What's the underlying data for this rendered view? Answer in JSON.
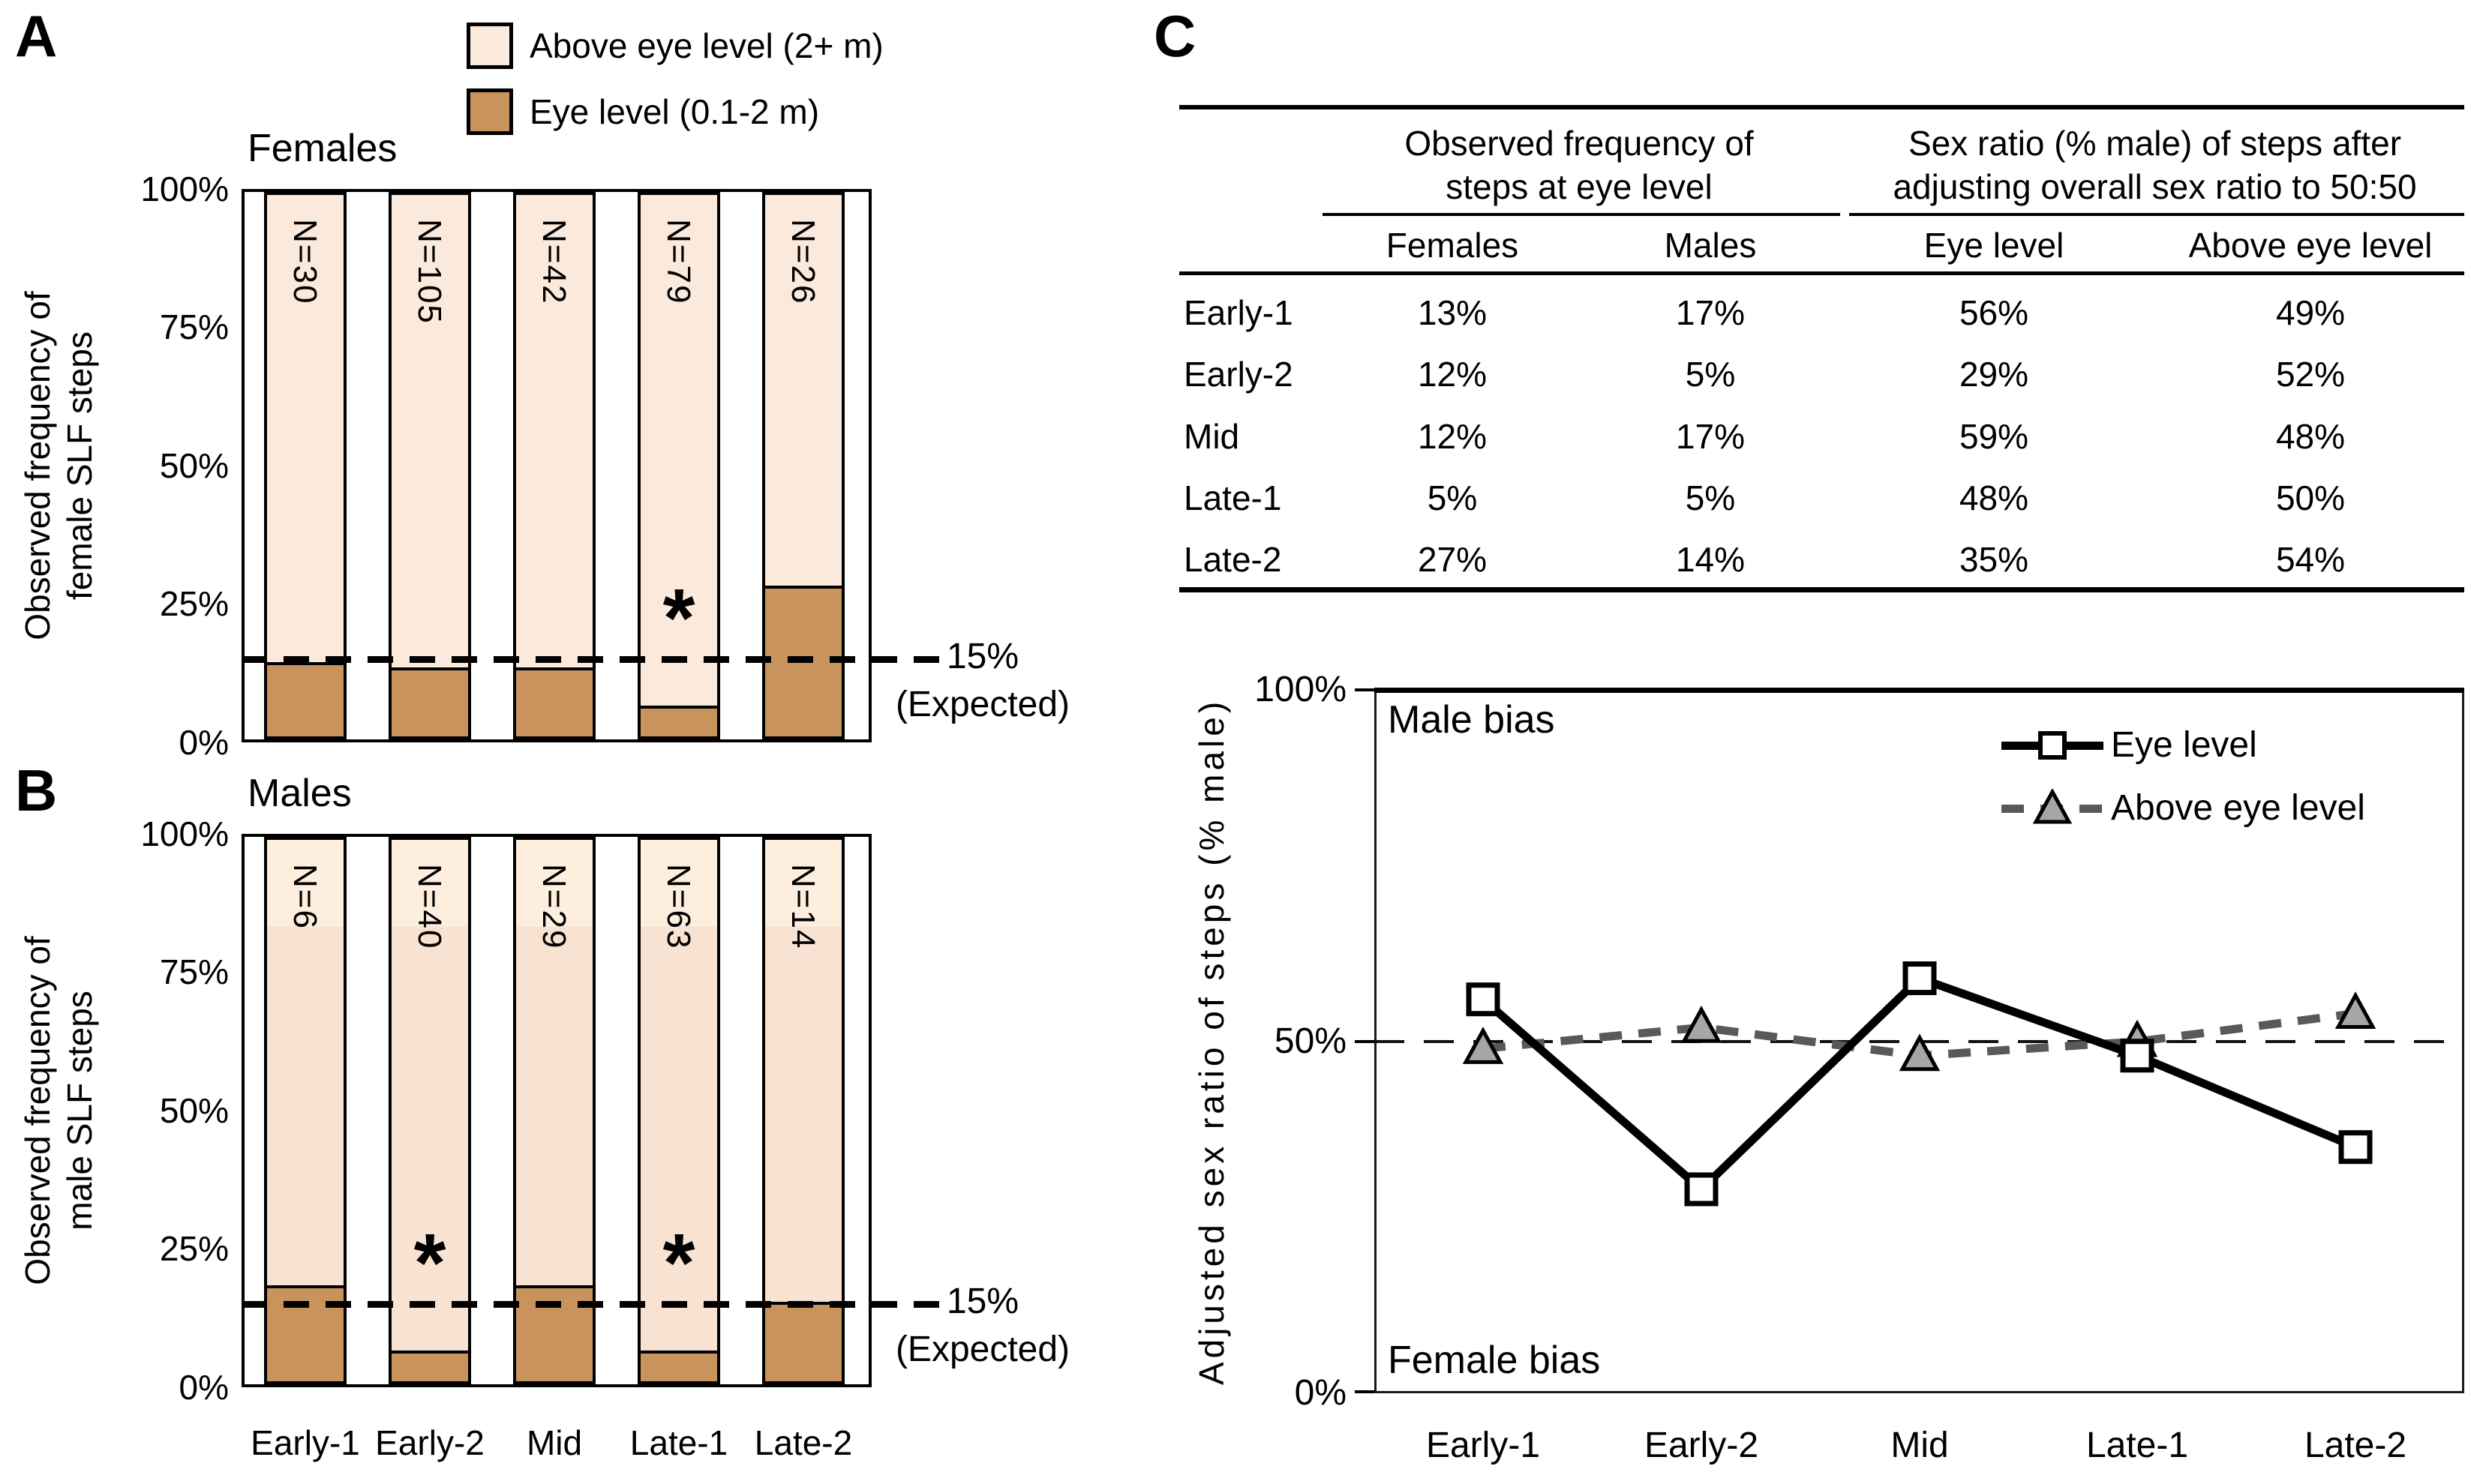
{
  "panels": {
    "a_label": "A",
    "b_label": "B",
    "c_label": "C"
  },
  "legend": {
    "items": [
      {
        "name": "above-eye-level",
        "label": "Above eye level (2+ m)",
        "color": "#fbe9dc"
      },
      {
        "name": "eye-level",
        "label": "Eye level (0.1-2 m)",
        "color": "#c8945c"
      }
    ]
  },
  "categories": [
    "Early-1",
    "Early-2",
    "Mid",
    "Late-1",
    "Late-2"
  ],
  "chart_data": [
    {
      "id": "females_stacked_bar",
      "type": "bar",
      "stacked": true,
      "title": "Females",
      "ylabel_lines": [
        "Observed frequency of",
        "female SLF steps"
      ],
      "categories": [
        "Early-1",
        "Early-2",
        "Mid",
        "Late-1",
        "Late-2"
      ],
      "series": [
        {
          "name": "Eye level (0.1-2 m)",
          "values": [
            13,
            12,
            12,
            5,
            27
          ],
          "color": "#c8945c"
        },
        {
          "name": "Above eye level (2+ m)",
          "values": [
            87,
            88,
            88,
            95,
            73
          ],
          "color": "#fbe9dc"
        }
      ],
      "bar_labels": [
        "N=30",
        "N=105",
        "N=42",
        "N=79",
        "N=26"
      ],
      "significance": [
        "",
        "",
        "",
        "*",
        ""
      ],
      "yticks": [
        "100%",
        "75%",
        "50%",
        "25%",
        "0%"
      ],
      "ylim": [
        0,
        100
      ],
      "reference_line": {
        "value": 15,
        "label": "15%",
        "sublabel": "(Expected)"
      }
    },
    {
      "id": "males_stacked_bar",
      "type": "bar",
      "stacked": true,
      "title": "Males",
      "ylabel_lines": [
        "Observed frequency of",
        "male SLF steps"
      ],
      "categories": [
        "Early-1",
        "Early-2",
        "Mid",
        "Late-1",
        "Late-2"
      ],
      "series": [
        {
          "name": "Eye level (0.1-2 m)",
          "values": [
            17,
            5,
            17,
            5,
            14
          ],
          "color": "#c8945c"
        },
        {
          "name": "Above eye level (2+ m)",
          "values": [
            83,
            95,
            83,
            95,
            86
          ],
          "color": "#fbe9dc"
        }
      ],
      "bar_labels": [
        "N=6",
        "N=40",
        "N=29",
        "N=63",
        "N=14"
      ],
      "significance": [
        "",
        "*",
        "",
        "*",
        ""
      ],
      "yticks": [
        "100%",
        "75%",
        "50%",
        "25%",
        "0%"
      ],
      "ylim": [
        0,
        100
      ],
      "reference_line": {
        "value": 15,
        "label": "15%",
        "sublabel": "(Expected)"
      }
    },
    {
      "id": "adjusted_sex_ratio_line",
      "type": "line",
      "ylabel": "Adjusted sex ratio of steps (% male)",
      "categories": [
        "Early-1",
        "Early-2",
        "Mid",
        "Late-1",
        "Late-2"
      ],
      "series": [
        {
          "name": "Eye level",
          "values": [
            56,
            29,
            59,
            48,
            35
          ],
          "line": "solid",
          "marker": "square",
          "color": "#000000",
          "marker_fill": "#ffffff"
        },
        {
          "name": "Above eye level",
          "values": [
            49,
            52,
            48,
            50,
            54
          ],
          "line": "dashed",
          "marker": "triangle",
          "color": "#595959",
          "marker_fill": "#a6a6a6"
        }
      ],
      "yticks": [
        "100%",
        "50%",
        "0%"
      ],
      "ylim": [
        0,
        100
      ],
      "reference_line": {
        "value": 50
      },
      "annotations": {
        "top_left": "Male bias",
        "bottom_left": "Female bias"
      },
      "legend_position": "top-right"
    }
  ],
  "table": {
    "group_headers_lines": [
      [
        "Observed frequency of",
        "steps at eye level"
      ],
      [
        "Sex ratio (% male) of steps after",
        "adjusting overall sex ratio to 50:50"
      ]
    ],
    "col_headers": [
      "Females",
      "Males",
      "Eye level",
      "Above eye level"
    ],
    "rows": [
      {
        "label": "Early-1",
        "values": [
          "13%",
          "17%",
          "56%",
          "49%"
        ]
      },
      {
        "label": "Early-2",
        "values": [
          "12%",
          "5%",
          "29%",
          "52%"
        ]
      },
      {
        "label": "Mid",
        "values": [
          "12%",
          "17%",
          "59%",
          "48%"
        ]
      },
      {
        "label": "Late-1",
        "values": [
          "5%",
          "5%",
          "48%",
          "50%"
        ]
      },
      {
        "label": "Late-2",
        "values": [
          "27%",
          "14%",
          "35%",
          "54%"
        ]
      }
    ]
  }
}
